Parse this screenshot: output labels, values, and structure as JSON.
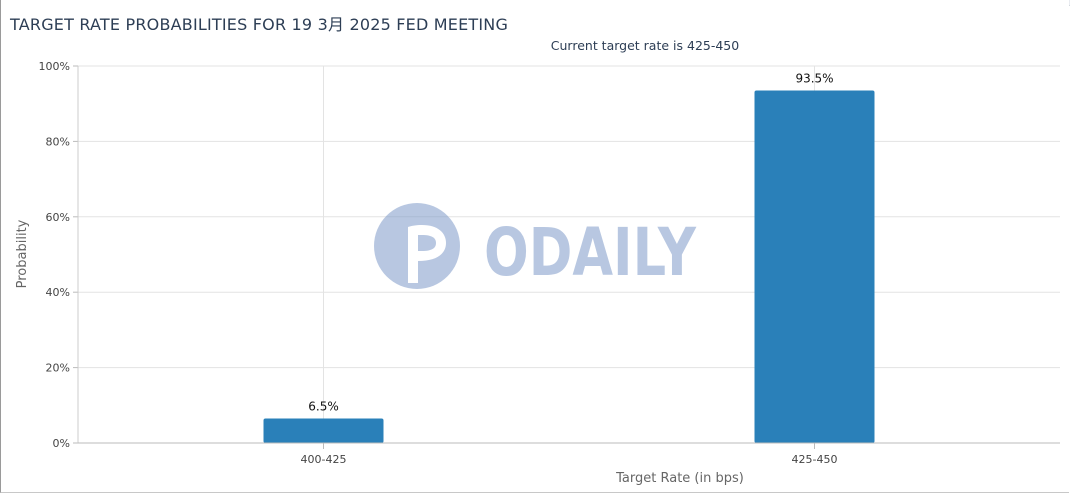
{
  "chart_data": {
    "type": "bar",
    "title": "TARGET RATE PROBABILITIES FOR 19 3月 2025 FED MEETING",
    "subtitle": "Current target rate is 425-450",
    "categories": [
      "400-425",
      "425-450"
    ],
    "values": [
      6.5,
      93.5
    ],
    "data_labels": [
      "6.5%",
      "93.5%"
    ],
    "xlabel": "Target Rate (in bps)",
    "ylabel": "Probability",
    "ylim": [
      0,
      100
    ],
    "yticks": [
      0,
      20,
      40,
      60,
      80,
      100
    ],
    "ytick_labels": [
      "0%",
      "20%",
      "40%",
      "60%",
      "80%",
      "100%"
    ],
    "grid": true,
    "legend": "none",
    "bar_color": "#2a80b9"
  },
  "watermark": {
    "text": "ODAILY",
    "color": "#7f9bc9"
  }
}
